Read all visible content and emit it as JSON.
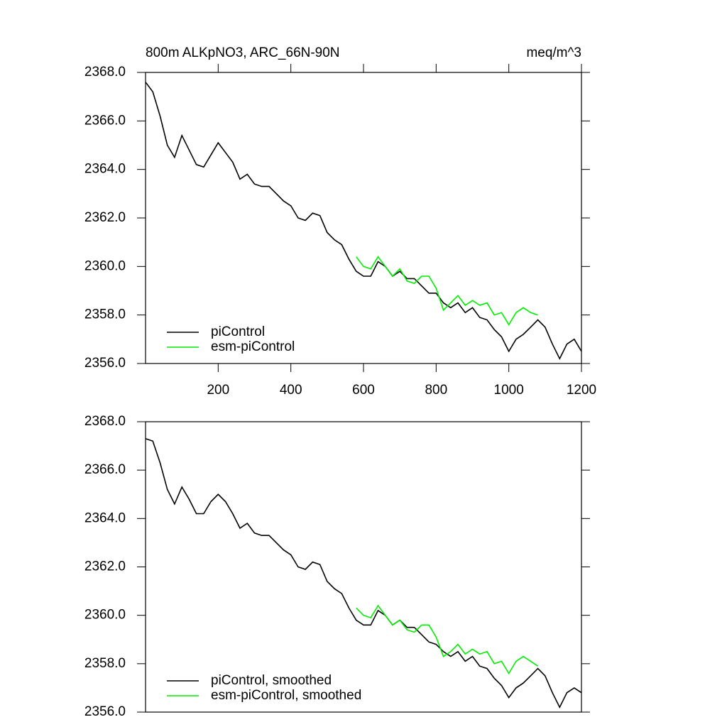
{
  "chart_data": [
    {
      "type": "line",
      "title": "800m ALKpNO3, ARC_66N-90N",
      "subtitle": "meq/m^3",
      "xlim": [
        0,
        1200
      ],
      "xticks": [
        200,
        400,
        600,
        800,
        1000,
        1200
      ],
      "ylim": [
        2356,
        2368
      ],
      "yticks": [
        {
          "value": 2356,
          "label": "2356.0"
        },
        {
          "value": 2358,
          "label": "2358.0"
        },
        {
          "value": 2360,
          "label": "2360.0"
        },
        {
          "value": 2362,
          "label": "2362.0"
        },
        {
          "value": 2364,
          "label": "2364.0"
        },
        {
          "value": 2366,
          "label": "2366.0"
        },
        {
          "value": 2368,
          "label": "2368.0"
        }
      ],
      "legend": "lower left",
      "series": [
        {
          "name": "piControl",
          "color": "#000000",
          "x": [
            0,
            20,
            40,
            60,
            80,
            100,
            120,
            140,
            160,
            180,
            200,
            220,
            240,
            260,
            280,
            300,
            320,
            340,
            360,
            380,
            400,
            420,
            440,
            460,
            480,
            500,
            520,
            540,
            560,
            580,
            600,
            620,
            640,
            660,
            680,
            700,
            720,
            740,
            760,
            780,
            800,
            820,
            840,
            860,
            880,
            900,
            920,
            940,
            960,
            980,
            1000,
            1020,
            1040,
            1060,
            1080,
            1100,
            1120,
            1140,
            1160,
            1180,
            1200
          ],
          "values": [
            2367.6,
            2367.2,
            2366.2,
            2365.0,
            2364.5,
            2365.4,
            2364.8,
            2364.2,
            2364.1,
            2364.6,
            2365.1,
            2364.7,
            2364.3,
            2363.6,
            2363.8,
            2363.4,
            2363.3,
            2363.3,
            2363.0,
            2362.7,
            2362.5,
            2362.0,
            2361.9,
            2362.2,
            2362.1,
            2361.4,
            2361.1,
            2360.9,
            2360.3,
            2359.8,
            2359.6,
            2359.6,
            2360.2,
            2360.0,
            2359.6,
            2359.8,
            2359.5,
            2359.5,
            2359.2,
            2358.9,
            2358.9,
            2358.5,
            2358.3,
            2358.5,
            2358.1,
            2358.3,
            2357.9,
            2357.8,
            2357.4,
            2357.1,
            2356.5,
            2357.0,
            2357.2,
            2357.5,
            2357.8,
            2357.5,
            2356.8,
            2356.2,
            2356.8,
            2357.0,
            2356.5
          ]
        },
        {
          "name": "esm-piControl",
          "color": "#00ee00",
          "x": [
            580,
            600,
            620,
            640,
            660,
            680,
            700,
            720,
            740,
            760,
            780,
            800,
            820,
            840,
            860,
            880,
            900,
            920,
            940,
            960,
            980,
            1000,
            1020,
            1040,
            1060,
            1080
          ],
          "values": [
            2360.4,
            2360.0,
            2359.9,
            2360.4,
            2360.0,
            2359.6,
            2359.9,
            2359.4,
            2359.3,
            2359.6,
            2359.6,
            2359.1,
            2358.2,
            2358.5,
            2358.8,
            2358.4,
            2358.6,
            2358.4,
            2358.5,
            2358.0,
            2358.1,
            2357.6,
            2358.1,
            2358.3,
            2358.1,
            2358.0
          ]
        }
      ]
    },
    {
      "type": "line",
      "xlim": [
        0,
        1200
      ],
      "ylim": [
        2356,
        2368
      ],
      "yticks": [
        {
          "value": 2356,
          "label": "2356.0"
        },
        {
          "value": 2358,
          "label": "2358.0"
        },
        {
          "value": 2360,
          "label": "2360.0"
        },
        {
          "value": 2362,
          "label": "2362.0"
        },
        {
          "value": 2364,
          "label": "2364.0"
        },
        {
          "value": 2366,
          "label": "2366.0"
        },
        {
          "value": 2368,
          "label": "2368.0"
        }
      ],
      "legend": "lower left",
      "series": [
        {
          "name": "piControl, smoothed",
          "color": "#000000",
          "x": [
            0,
            20,
            40,
            60,
            80,
            100,
            120,
            140,
            160,
            180,
            200,
            220,
            240,
            260,
            280,
            300,
            320,
            340,
            360,
            380,
            400,
            420,
            440,
            460,
            480,
            500,
            520,
            540,
            560,
            580,
            600,
            620,
            640,
            660,
            680,
            700,
            720,
            740,
            760,
            780,
            800,
            820,
            840,
            860,
            880,
            900,
            920,
            940,
            960,
            980,
            1000,
            1020,
            1040,
            1060,
            1080,
            1100,
            1120,
            1140,
            1160,
            1180,
            1200
          ],
          "values": [
            2367.3,
            2367.2,
            2366.3,
            2365.2,
            2364.6,
            2365.3,
            2364.8,
            2364.2,
            2364.2,
            2364.7,
            2365.0,
            2364.7,
            2364.2,
            2363.6,
            2363.8,
            2363.4,
            2363.3,
            2363.3,
            2363.0,
            2362.7,
            2362.5,
            2362.0,
            2361.9,
            2362.2,
            2362.1,
            2361.4,
            2361.1,
            2360.9,
            2360.3,
            2359.8,
            2359.6,
            2359.6,
            2360.2,
            2360.0,
            2359.6,
            2359.8,
            2359.5,
            2359.5,
            2359.2,
            2358.9,
            2358.8,
            2358.5,
            2358.3,
            2358.5,
            2358.1,
            2358.3,
            2357.9,
            2357.8,
            2357.4,
            2357.1,
            2356.6,
            2357.0,
            2357.2,
            2357.5,
            2357.8,
            2357.5,
            2356.8,
            2356.2,
            2356.8,
            2357.0,
            2356.8
          ]
        },
        {
          "name": "esm-piControl, smoothed",
          "color": "#00ee00",
          "x": [
            580,
            600,
            620,
            640,
            660,
            680,
            700,
            720,
            740,
            760,
            780,
            800,
            820,
            840,
            860,
            880,
            900,
            920,
            940,
            960,
            980,
            1000,
            1020,
            1040,
            1060,
            1080
          ],
          "values": [
            2360.3,
            2360.0,
            2359.9,
            2360.4,
            2360.0,
            2359.6,
            2359.8,
            2359.4,
            2359.3,
            2359.6,
            2359.6,
            2359.1,
            2358.3,
            2358.5,
            2358.8,
            2358.4,
            2358.6,
            2358.4,
            2358.5,
            2358.0,
            2358.1,
            2357.6,
            2358.1,
            2358.3,
            2358.1,
            2357.9
          ]
        }
      ]
    }
  ]
}
